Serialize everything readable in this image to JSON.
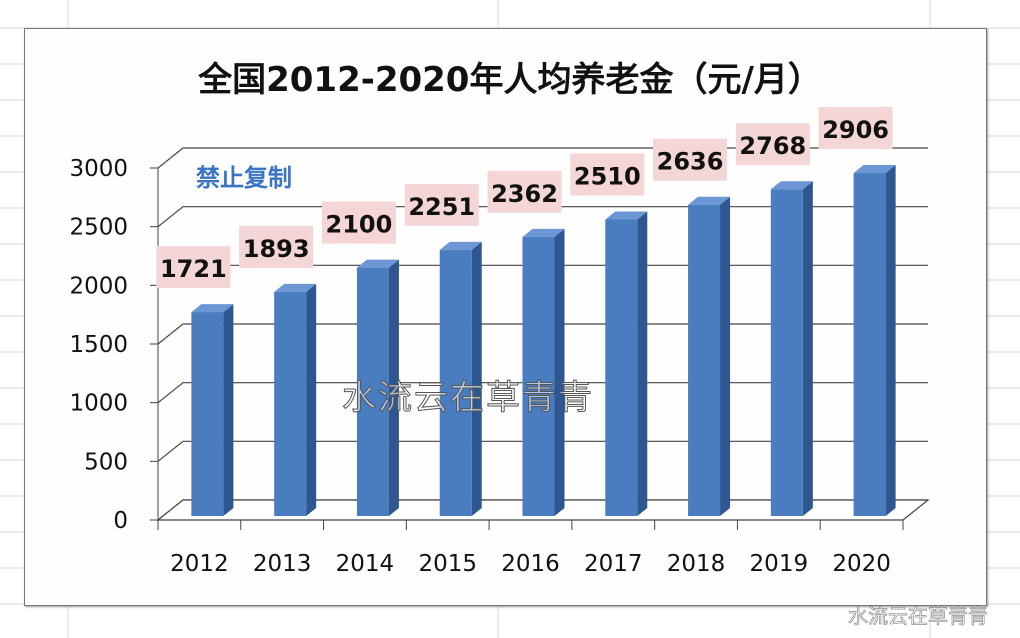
{
  "chart_data": {
    "type": "bar",
    "title": "全国2012-2020年人均养老金（元/月）",
    "categories": [
      "2012",
      "2013",
      "2014",
      "2015",
      "2016",
      "2017",
      "2018",
      "2019",
      "2020"
    ],
    "values": [
      1721,
      1893,
      2100,
      2251,
      2362,
      2510,
      2636,
      2768,
      2906
    ],
    "yticks": [
      "0",
      "500",
      "1000",
      "1500",
      "2000",
      "2500",
      "3000"
    ],
    "ylim": [
      0,
      3000
    ],
    "grid": true,
    "legend": "none",
    "bar_color": "#4a7cc0",
    "label_bg": "#f5d6d6"
  },
  "watermarks": {
    "top": "禁止复制",
    "center": "水流云在草青青",
    "corner": "水流云在草青青"
  }
}
